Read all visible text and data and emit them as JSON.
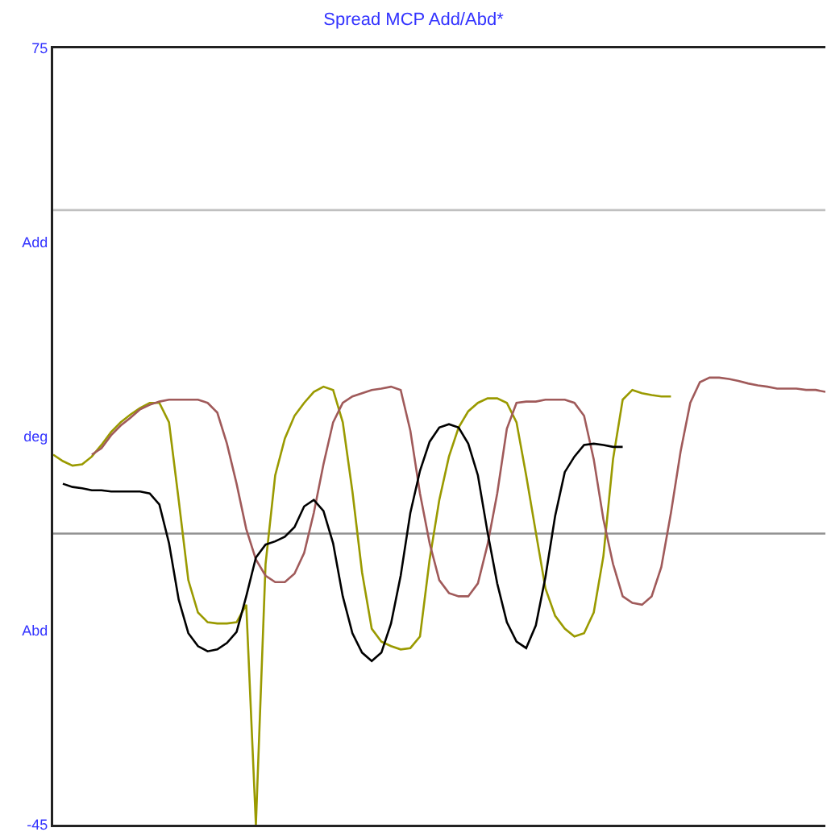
{
  "chart_data": {
    "type": "line",
    "title": "Spread MCP Add/Abd*",
    "categories": [
      null,
      null,
      null,
      null,
      null,
      null,
      null,
      null,
      null,
      null,
      null,
      null,
      null,
      null,
      null,
      null,
      null,
      null,
      null,
      null,
      null,
      null,
      null,
      null,
      null,
      null,
      null,
      null,
      null,
      null,
      null,
      null,
      null,
      null,
      null,
      null,
      null,
      null,
      null,
      null,
      null,
      null,
      null,
      null,
      null,
      null,
      null,
      null,
      null,
      null,
      null,
      null,
      null,
      null,
      null,
      null,
      null,
      null,
      null,
      null,
      null,
      null,
      null,
      null,
      null,
      null,
      null,
      null,
      null,
      null,
      null,
      null,
      null,
      null,
      null,
      null,
      null,
      null,
      null,
      null,
      null
    ],
    "series": [
      {
        "color": "#9a9a00",
        "values": [
          12.2,
          11.2,
          10.5,
          10.7,
          11.9,
          13.7,
          15.7,
          17.2,
          18.4,
          19.4,
          20.2,
          20.2,
          17.2,
          5.2,
          -7.2,
          -12.2,
          -13.7,
          -13.9,
          -13.9,
          -13.7,
          -11,
          -45,
          -4.7,
          9,
          14.7,
          18.2,
          20.2,
          21.9,
          22.7,
          22.2,
          17.2,
          6.5,
          -6,
          -14.7,
          -16.7,
          -17.4,
          -17.9,
          -17.7,
          -15.9,
          -4,
          5.2,
          11.9,
          16.4,
          18.9,
          20.2,
          20.9,
          20.9,
          20.2,
          17.2,
          9,
          0.2,
          -8.5,
          -12.7,
          -14.7,
          -15.9,
          -15.4,
          -12.2,
          -3.5,
          11.5,
          20.7,
          22.2,
          21.7,
          21.4,
          21.2,
          21.2,
          null,
          null,
          null,
          null,
          null,
          null,
          null,
          null,
          null,
          null,
          null,
          null,
          null,
          null,
          null,
          null
        ]
      },
      {
        "color": "#a05a5a",
        "values": [
          null,
          null,
          null,
          null,
          12.2,
          13.2,
          15.2,
          16.7,
          17.9,
          19.2,
          19.9,
          20.4,
          20.7,
          20.7,
          20.7,
          20.7,
          20.2,
          18.7,
          13.9,
          7.7,
          0.7,
          -4,
          -6.5,
          -7.5,
          -7.5,
          -6.2,
          -3,
          3.2,
          10.7,
          17.2,
          20.2,
          21.2,
          21.7,
          22.2,
          22.4,
          22.7,
          22.2,
          15.9,
          6.2,
          -1.5,
          -7.2,
          -9.2,
          -9.7,
          -9.7,
          -7.7,
          -1.7,
          6.2,
          16.2,
          20.2,
          20.4,
          20.4,
          20.7,
          20.7,
          20.7,
          20.2,
          18.2,
          11.5,
          2.2,
          -4.7,
          -9.7,
          -10.7,
          -11,
          -9.7,
          -5.2,
          3.2,
          12.7,
          20.2,
          23.4,
          24.1,
          24.1,
          23.9,
          23.6,
          23.2,
          22.9,
          22.7,
          22.4,
          22.4,
          22.4,
          22.2,
          22.2,
          21.9
        ]
      },
      {
        "color": "#000000",
        "values": [
          null,
          7.7,
          7.2,
          7,
          6.7,
          6.7,
          6.5,
          6.5,
          6.5,
          6.5,
          6.2,
          4.5,
          -1.5,
          -10.2,
          -15.4,
          -17.4,
          -18.2,
          -17.9,
          -16.9,
          -15.2,
          -9.7,
          -3.7,
          -1.7,
          -1.2,
          -0.5,
          1,
          4.2,
          5.2,
          3.5,
          -1.5,
          -9.7,
          -15.4,
          -18.4,
          -19.7,
          -18.4,
          -13.9,
          -6.5,
          3.2,
          9.7,
          14.2,
          16.4,
          16.9,
          16.4,
          13.9,
          9,
          0.2,
          -7.7,
          -13.7,
          -16.7,
          -17.7,
          -14.2,
          -6.7,
          2.7,
          9.5,
          11.9,
          13.7,
          13.9,
          13.7,
          13.4,
          13.4,
          null,
          null,
          null,
          null,
          null,
          null,
          null,
          null,
          null,
          null,
          null,
          null,
          null,
          null,
          null,
          null,
          null,
          null,
          null,
          null,
          null
        ]
      }
    ],
    "ylim": [
      -45,
      75
    ],
    "yticks": [
      75,
      {
        "value": 45,
        "label": "Add"
      },
      {
        "value": 15,
        "label": "deg"
      },
      {
        "value": -15,
        "label": "Abd"
      },
      -45
    ],
    "ref_lines": [
      {
        "axis": "y",
        "value": 50,
        "color": "#c0c0c0"
      },
      {
        "axis": "y",
        "value": 0,
        "color": "#909090"
      }
    ],
    "tick_labels": "y",
    "grid": false,
    "marker": "none",
    "line_style": "solid"
  }
}
